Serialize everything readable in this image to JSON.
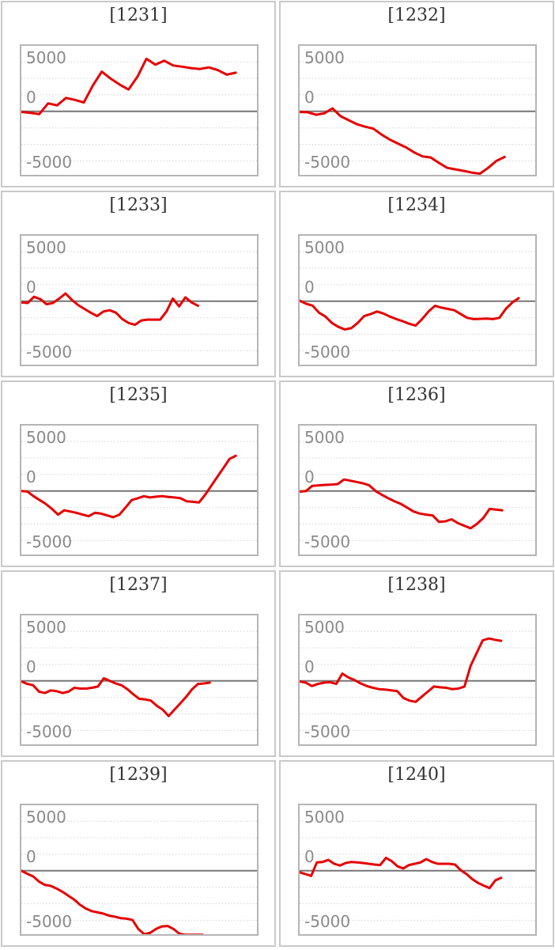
{
  "colors": {
    "series": "#e60000",
    "zero_line": "#757575",
    "gridline": "#d4d4d4",
    "plot_border": "#b5b5b5",
    "card_border": "#c9c9c9",
    "tick_label": "#8a8a8a",
    "title": "#333333",
    "background": "#ffffff"
  },
  "chart_data": [
    {
      "type": "line",
      "title": "[1231]",
      "y_tick_labels": [
        "5000",
        "0",
        "-5000"
      ],
      "ylim": [
        -6400,
        6600
      ],
      "y_major_gridlines": [
        5000,
        0,
        -5000
      ],
      "y_minor_gridlines": [
        3333,
        1667,
        -1667,
        -3333
      ],
      "x_span_fraction": 0.91,
      "values": [
        -60,
        -150,
        -280,
        800,
        600,
        1350,
        1150,
        900,
        2600,
        4000,
        3300,
        2700,
        2200,
        3500,
        5300,
        4700,
        5100,
        4620,
        4500,
        4360,
        4270,
        4430,
        4150,
        3700,
        3900
      ]
    },
    {
      "type": "line",
      "title": "[1232]",
      "y_tick_labels": [
        "5000",
        "0",
        "-5000"
      ],
      "ylim": [
        -6400,
        6600
      ],
      "y_major_gridlines": [
        5000,
        0,
        -5000
      ],
      "y_minor_gridlines": [
        3333,
        1667,
        -1667,
        -3333
      ],
      "x_span_fraction": 0.87,
      "values": [
        -60,
        -90,
        -350,
        -200,
        300,
        -500,
        -900,
        -1300,
        -1550,
        -1750,
        -2350,
        -2850,
        -3250,
        -3650,
        -4150,
        -4550,
        -4650,
        -5200,
        -5700,
        -5850,
        -6000,
        -6180,
        -6280,
        -5700,
        -5000,
        -4600
      ]
    },
    {
      "type": "line",
      "title": "[1233]",
      "y_tick_labels": [
        "5000",
        "0",
        "-5000"
      ],
      "ylim": [
        -6400,
        6600
      ],
      "y_major_gridlines": [
        5000,
        0,
        -5000
      ],
      "y_minor_gridlines": [
        3333,
        1667,
        -1667,
        -3333
      ],
      "x_span_fraction": 0.75,
      "values": [
        -130,
        -180,
        440,
        210,
        -310,
        -180,
        260,
        780,
        130,
        -390,
        -780,
        -1160,
        -1500,
        -1040,
        -910,
        -1160,
        -1810,
        -2200,
        -2380,
        -1940,
        -1860,
        -1860,
        -1860,
        -1040,
        260,
        -520,
        390,
        -130,
        -470
      ]
    },
    {
      "type": "line",
      "title": "[1234]",
      "y_tick_labels": [
        "5000",
        "0",
        "-5000"
      ],
      "ylim": [
        -6400,
        6600
      ],
      "y_major_gridlines": [
        5000,
        0,
        -5000
      ],
      "y_minor_gridlines": [
        3333,
        1667,
        -1667,
        -3333
      ],
      "x_span_fraction": 0.93,
      "values": [
        50,
        -260,
        -440,
        -1160,
        -1550,
        -2200,
        -2590,
        -2850,
        -2720,
        -2200,
        -1500,
        -1300,
        -1040,
        -1240,
        -1550,
        -1810,
        -2020,
        -2280,
        -2460,
        -1810,
        -1040,
        -470,
        -650,
        -780,
        -910,
        -1300,
        -1680,
        -1810,
        -1780,
        -1760,
        -1810,
        -1680,
        -780,
        -130,
        310
      ]
    },
    {
      "type": "line",
      "title": "[1235]",
      "y_tick_labels": [
        "5000",
        "0",
        "-5000"
      ],
      "ylim": [
        -6400,
        6600
      ],
      "y_major_gridlines": [
        5000,
        0,
        -5000
      ],
      "y_minor_gridlines": [
        3333,
        1667,
        -1667,
        -3333
      ],
      "x_span_fraction": 0.91,
      "values": [
        0,
        -50,
        -520,
        -910,
        -1300,
        -1810,
        -2380,
        -1940,
        -2070,
        -2200,
        -2380,
        -2540,
        -2200,
        -2280,
        -2460,
        -2640,
        -2380,
        -1680,
        -910,
        -730,
        -520,
        -650,
        -570,
        -520,
        -600,
        -650,
        -730,
        -1040,
        -1090,
        -1160,
        -390,
        520,
        1420,
        2330,
        3240,
        3550
      ]
    },
    {
      "type": "line",
      "title": "[1236]",
      "y_tick_labels": [
        "5000",
        "0",
        "-5000"
      ],
      "ylim": [
        -6400,
        6600
      ],
      "y_major_gridlines": [
        5000,
        0,
        -5000
      ],
      "y_minor_gridlines": [
        3333,
        1667,
        -1667,
        -3333
      ],
      "x_span_fraction": 0.86,
      "values": [
        -60,
        0,
        520,
        570,
        620,
        650,
        700,
        1160,
        1040,
        910,
        780,
        570,
        0,
        -390,
        -730,
        -1040,
        -1300,
        -1680,
        -2070,
        -2280,
        -2380,
        -2460,
        -3110,
        -3060,
        -2850,
        -3240,
        -3500,
        -3760,
        -3320,
        -2720,
        -1810,
        -1870,
        -1940
      ]
    },
    {
      "type": "line",
      "title": "[1237]",
      "y_tick_labels": [
        "5000",
        "0",
        "-5000"
      ],
      "ylim": [
        -6400,
        6600
      ],
      "y_major_gridlines": [
        5000,
        0,
        -5000
      ],
      "y_minor_gridlines": [
        3333,
        1667,
        -1667,
        -3333
      ],
      "x_span_fraction": 0.8,
      "values": [
        -60,
        -310,
        -440,
        -1090,
        -1220,
        -960,
        -1040,
        -1220,
        -1090,
        -700,
        -780,
        -780,
        -700,
        -570,
        260,
        0,
        -260,
        -440,
        -830,
        -1350,
        -1810,
        -1870,
        -1990,
        -2510,
        -2900,
        -3550,
        -2900,
        -2250,
        -1600,
        -830,
        -310,
        -260,
        -180
      ]
    },
    {
      "type": "line",
      "title": "[1238]",
      "y_tick_labels": [
        "5000",
        "0",
        "-5000"
      ],
      "ylim": [
        -6400,
        6600
      ],
      "y_major_gridlines": [
        5000,
        0,
        -5000
      ],
      "y_minor_gridlines": [
        3333,
        1667,
        -1667,
        -3333
      ],
      "x_span_fraction": 0.855,
      "values": [
        -60,
        -180,
        -520,
        -310,
        -180,
        -130,
        -310,
        730,
        340,
        80,
        -260,
        -520,
        -700,
        -830,
        -880,
        -960,
        -1040,
        -1730,
        -1990,
        -2120,
        -1600,
        -1090,
        -570,
        -650,
        -700,
        -830,
        -780,
        -570,
        1500,
        2800,
        4090,
        4270,
        4140,
        4040
      ]
    },
    {
      "type": "line",
      "title": "[1239]",
      "y_tick_labels": [
        "5000",
        "0",
        "-5000"
      ],
      "ylim": [
        -6400,
        6600
      ],
      "y_major_gridlines": [
        5000,
        0,
        -5000
      ],
      "y_minor_gridlines": [
        3333,
        1667,
        -1667,
        -3333
      ],
      "x_span_fraction": 0.77,
      "values": [
        0,
        -310,
        -570,
        -1090,
        -1420,
        -1530,
        -1790,
        -2120,
        -2510,
        -2900,
        -3420,
        -3810,
        -4070,
        -4200,
        -4330,
        -4530,
        -4640,
        -4790,
        -4840,
        -4970,
        -5880,
        -6400,
        -6270,
        -5880,
        -5620,
        -5570,
        -5880,
        -6350,
        -6460,
        -6460,
        -6460,
        -6460
      ]
    },
    {
      "type": "line",
      "title": "[1240]",
      "y_tick_labels": [
        "5000",
        "0",
        "-5000"
      ],
      "ylim": [
        -6400,
        6600
      ],
      "y_major_gridlines": [
        5000,
        0,
        -5000
      ],
      "y_minor_gridlines": [
        3333,
        1667,
        -1667,
        -3333
      ],
      "x_span_fraction": 0.855,
      "values": [
        -160,
        -340,
        -520,
        830,
        880,
        1090,
        700,
        520,
        780,
        880,
        830,
        780,
        700,
        620,
        570,
        1300,
        960,
        440,
        230,
        570,
        700,
        830,
        1170,
        880,
        700,
        700,
        700,
        620,
        50,
        -340,
        -850,
        -1240,
        -1500,
        -1760,
        -980,
        -720
      ]
    }
  ]
}
